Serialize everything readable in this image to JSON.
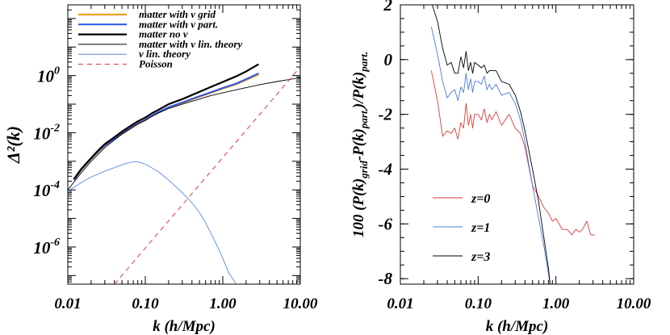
{
  "chart_data": [
    {
      "type": "line",
      "xscale": "log",
      "yscale": "log",
      "xlim": [
        0.01,
        10.0
      ],
      "ylim": [
        5e-08,
        300
      ],
      "xlabel": "k (h/Mpc)",
      "ylabel": "Δ²(k)",
      "x_ticks": [
        {
          "v": 0.01,
          "label": "0.01"
        },
        {
          "v": 0.1,
          "label": "0.10"
        },
        {
          "v": 1.0,
          "label": "1.00"
        },
        {
          "v": 10.0,
          "label": "10.00"
        }
      ],
      "y_ticks": [
        {
          "v": 1e-06,
          "base": "10",
          "exp": "-6"
        },
        {
          "v": 0.0001,
          "base": "10",
          "exp": "-4"
        },
        {
          "v": 0.01,
          "base": "10",
          "exp": "-2"
        },
        {
          "v": 1,
          "base": "10",
          "exp": "0"
        }
      ],
      "legend_position": "top-left",
      "series": [
        {
          "name": "matter with ν grid",
          "color": "#f0a020",
          "width": 2.2,
          "dash": "",
          "x": [
            0.012,
            0.015,
            0.02,
            0.025,
            0.03,
            0.04,
            0.05,
            0.07,
            0.08,
            0.1,
            0.12,
            0.15,
            0.2,
            0.3,
            0.5,
            0.7,
            1.0,
            1.5,
            2.0,
            2.9
          ],
          "y": [
            0.00022,
            0.0005,
            0.0012,
            0.0022,
            0.0035,
            0.006,
            0.009,
            0.016,
            0.02,
            0.027,
            0.038,
            0.052,
            0.075,
            0.11,
            0.18,
            0.25,
            0.35,
            0.5,
            0.7,
            1.1
          ]
        },
        {
          "name": "matter with ν part.",
          "color": "#2a55e6",
          "width": 2.0,
          "dash": "",
          "x": [
            0.012,
            0.015,
            0.02,
            0.025,
            0.03,
            0.04,
            0.05,
            0.07,
            0.08,
            0.1,
            0.12,
            0.15,
            0.2,
            0.3,
            0.5,
            0.7,
            1.0,
            1.5,
            2.0,
            2.9
          ],
          "y": [
            0.00022,
            0.00052,
            0.00125,
            0.0023,
            0.0036,
            0.0062,
            0.0093,
            0.0165,
            0.021,
            0.028,
            0.039,
            0.054,
            0.078,
            0.115,
            0.19,
            0.26,
            0.37,
            0.53,
            0.75,
            1.2
          ]
        },
        {
          "name": "matter no ν",
          "color": "#000000",
          "width": 2.2,
          "dash": "",
          "x": [
            0.012,
            0.015,
            0.02,
            0.025,
            0.03,
            0.04,
            0.05,
            0.07,
            0.08,
            0.1,
            0.12,
            0.15,
            0.2,
            0.3,
            0.5,
            0.7,
            1.0,
            1.5,
            2.0,
            2.9
          ],
          "y": [
            0.00024,
            0.00055,
            0.0013,
            0.0025,
            0.004,
            0.007,
            0.011,
            0.02,
            0.025,
            0.034,
            0.047,
            0.065,
            0.1,
            0.15,
            0.27,
            0.4,
            0.6,
            0.95,
            1.4,
            2.5
          ]
        },
        {
          "name": "matter with ν lin. theory",
          "color": "#000000",
          "width": 0.9,
          "dash": "",
          "x": [
            0.01,
            0.015,
            0.02,
            0.03,
            0.05,
            0.07,
            0.1,
            0.15,
            0.2,
            0.3,
            0.5,
            0.7,
            1.0,
            1.5,
            2.0,
            3.0,
            5.0,
            7.0,
            10.0
          ],
          "y": [
            0.0001,
            0.0004,
            0.001,
            0.003,
            0.009,
            0.017,
            0.028,
            0.05,
            0.07,
            0.1,
            0.15,
            0.2,
            0.25,
            0.32,
            0.38,
            0.48,
            0.62,
            0.72,
            0.85
          ]
        },
        {
          "name": "ν lin. theory",
          "color": "#5a88e8",
          "width": 0.9,
          "dash": "",
          "x": [
            0.01,
            0.015,
            0.02,
            0.03,
            0.04,
            0.05,
            0.06,
            0.07,
            0.08,
            0.09,
            0.1,
            0.12,
            0.15,
            0.2,
            0.3,
            0.4,
            0.5,
            0.6,
            0.8,
            1.0,
            1.2,
            1.5
          ],
          "y": [
            9e-05,
            0.00018,
            0.00028,
            0.00045,
            0.0006,
            0.00075,
            0.00088,
            0.00095,
            0.00095,
            0.00088,
            0.0008,
            0.0006,
            0.00042,
            0.00022,
            8e-05,
            3.5e-05,
            1.6e-05,
            7e-06,
            1.5e-06,
            4e-07,
            1.2e-07,
            5e-08
          ]
        },
        {
          "name": "Poisson",
          "color": "#e03a3a",
          "width": 1.0,
          "dash": "6,5",
          "x": [
            0.04,
            10.0
          ],
          "y": [
            5e-08,
            2.0
          ]
        }
      ]
    },
    {
      "type": "line",
      "xscale": "log",
      "yscale": "linear",
      "xlim": [
        0.01,
        10.0
      ],
      "ylim": [
        -8.2,
        2.0
      ],
      "xlabel": "k (h/Mpc)",
      "ylabel": "100 (P(k)grid-P(k)part.)/P(k)part.",
      "x_ticks": [
        {
          "v": 0.01,
          "label": "0.01"
        },
        {
          "v": 0.1,
          "label": "0.10"
        },
        {
          "v": 1.0,
          "label": "1.00"
        },
        {
          "v": 10.0,
          "label": "10.00"
        }
      ],
      "y_ticks": [
        {
          "v": 2,
          "label": "2"
        },
        {
          "v": 0,
          "label": "0"
        },
        {
          "v": -2,
          "label": "-2"
        },
        {
          "v": -4,
          "label": "-4"
        },
        {
          "v": -6,
          "label": "-6"
        },
        {
          "v": -8,
          "label": "-8"
        }
      ],
      "legend_position": "bottom-left",
      "series": [
        {
          "name": "z=0",
          "color": "#e03a3a",
          "width": 0.9,
          "dash": "",
          "x": [
            0.025,
            0.03,
            0.035,
            0.04,
            0.045,
            0.05,
            0.055,
            0.06,
            0.065,
            0.07,
            0.075,
            0.08,
            0.085,
            0.09,
            0.1,
            0.11,
            0.12,
            0.13,
            0.14,
            0.15,
            0.17,
            0.2,
            0.25,
            0.3,
            0.35,
            0.4,
            0.5,
            0.6,
            0.7,
            0.8,
            0.9,
            1.0,
            1.1,
            1.2,
            1.4,
            1.6,
            1.8,
            2.0,
            2.2,
            2.5,
            2.8,
            3.2
          ],
          "y": [
            -0.4,
            -1.5,
            -2.8,
            -2.6,
            -2.7,
            -2.5,
            -2.9,
            -2.3,
            -2.5,
            -1.6,
            -2.4,
            -2.0,
            -2.5,
            -2.0,
            -2.0,
            -2.2,
            -1.8,
            -2.3,
            -2.0,
            -2.2,
            -1.9,
            -2.4,
            -2.0,
            -2.5,
            -2.7,
            -3.2,
            -4.6,
            -5.0,
            -5.4,
            -5.6,
            -5.9,
            -5.8,
            -6.0,
            -6.2,
            -6.2,
            -6.4,
            -6.2,
            -6.3,
            -6.2,
            -5.9,
            -6.4,
            -6.4
          ]
        },
        {
          "name": "z=1",
          "color": "#4a78e0",
          "width": 0.9,
          "dash": "",
          "x": [
            0.025,
            0.03,
            0.035,
            0.04,
            0.045,
            0.05,
            0.055,
            0.06,
            0.065,
            0.07,
            0.075,
            0.08,
            0.085,
            0.09,
            0.1,
            0.11,
            0.12,
            0.13,
            0.14,
            0.15,
            0.17,
            0.2,
            0.25,
            0.3,
            0.35,
            0.4,
            0.5,
            0.6,
            0.7,
            0.8,
            0.85
          ],
          "y": [
            1.2,
            0.2,
            -0.8,
            -1.4,
            -1.2,
            -1.1,
            -1.5,
            -1.0,
            -1.2,
            -0.5,
            -1.1,
            -0.7,
            -1.2,
            -0.8,
            -0.8,
            -0.9,
            -0.6,
            -1.1,
            -0.9,
            -1.1,
            -0.9,
            -1.3,
            -1.2,
            -1.6,
            -2.2,
            -3.0,
            -4.6,
            -5.8,
            -6.8,
            -7.8,
            -8.3
          ]
        },
        {
          "name": "z=3",
          "color": "#000000",
          "width": 0.9,
          "dash": "",
          "x": [
            0.025,
            0.03,
            0.035,
            0.04,
            0.045,
            0.05,
            0.055,
            0.06,
            0.065,
            0.07,
            0.075,
            0.08,
            0.085,
            0.09,
            0.1,
            0.11,
            0.12,
            0.13,
            0.14,
            0.15,
            0.17,
            0.2,
            0.25,
            0.3,
            0.35,
            0.4,
            0.5,
            0.6,
            0.7,
            0.8,
            0.85
          ],
          "y": [
            2.1,
            1.4,
            0.4,
            -0.2,
            -0.1,
            -0.5,
            -0.5,
            0.1,
            -0.3,
            0.3,
            -0.4,
            -0.1,
            -0.5,
            -0.1,
            -0.2,
            -0.3,
            -0.2,
            -0.5,
            -0.4,
            -0.4,
            -0.4,
            -0.8,
            -0.9,
            -1.3,
            -1.9,
            -2.6,
            -4.0,
            -5.2,
            -6.5,
            -7.6,
            -8.3
          ]
        }
      ]
    }
  ]
}
